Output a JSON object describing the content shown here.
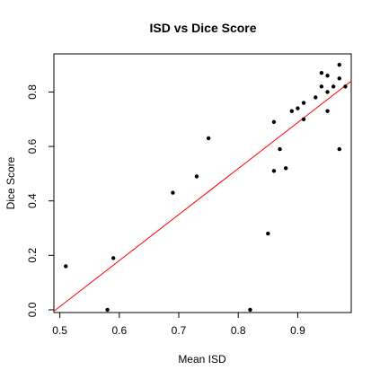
{
  "chart_data": {
    "type": "scatter",
    "title": "ISD vs Dice Score",
    "xlabel": "Mean ISD",
    "ylabel": "Dice Score",
    "xlim": [
      0.49,
      0.99
    ],
    "ylim": [
      -0.01,
      0.94
    ],
    "xticks": [
      0.5,
      0.6,
      0.7,
      0.8,
      0.9
    ],
    "xtick_labels": [
      "0.5",
      "0.6",
      "0.7",
      "0.8",
      "0.9"
    ],
    "yticks": [
      0.0,
      0.2,
      0.4,
      0.6,
      0.8
    ],
    "ytick_labels": [
      "0.0",
      "0.2",
      "0.4",
      "0.6",
      "0.8"
    ],
    "grid": false,
    "legend": "none",
    "points": [
      {
        "x": 0.51,
        "y": 0.16
      },
      {
        "x": 0.58,
        "y": 0.0
      },
      {
        "x": 0.59,
        "y": 0.19
      },
      {
        "x": 0.69,
        "y": 0.43
      },
      {
        "x": 0.73,
        "y": 0.49
      },
      {
        "x": 0.75,
        "y": 0.63
      },
      {
        "x": 0.82,
        "y": 0.0
      },
      {
        "x": 0.85,
        "y": 0.28
      },
      {
        "x": 0.86,
        "y": 0.51
      },
      {
        "x": 0.86,
        "y": 0.69
      },
      {
        "x": 0.87,
        "y": 0.59
      },
      {
        "x": 0.88,
        "y": 0.52
      },
      {
        "x": 0.89,
        "y": 0.73
      },
      {
        "x": 0.9,
        "y": 0.74
      },
      {
        "x": 0.91,
        "y": 0.7
      },
      {
        "x": 0.91,
        "y": 0.76
      },
      {
        "x": 0.93,
        "y": 0.78
      },
      {
        "x": 0.94,
        "y": 0.82
      },
      {
        "x": 0.94,
        "y": 0.87
      },
      {
        "x": 0.95,
        "y": 0.73
      },
      {
        "x": 0.95,
        "y": 0.8
      },
      {
        "x": 0.95,
        "y": 0.86
      },
      {
        "x": 0.96,
        "y": 0.82
      },
      {
        "x": 0.97,
        "y": 0.85
      },
      {
        "x": 0.97,
        "y": 0.9
      },
      {
        "x": 0.97,
        "y": 0.59
      },
      {
        "x": 0.98,
        "y": 0.82
      }
    ],
    "regression_line": {
      "color": "#ff0000",
      "points": [
        {
          "x": 0.49,
          "y": -0.005
        },
        {
          "x": 0.99,
          "y": 0.84
        }
      ]
    },
    "point_color": "#000000"
  }
}
